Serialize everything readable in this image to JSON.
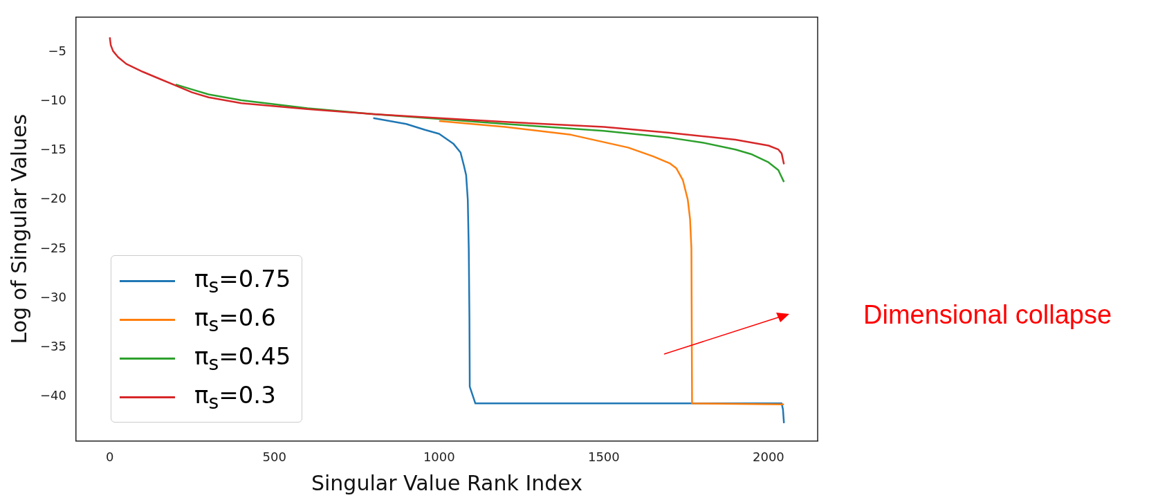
{
  "chart_data": {
    "type": "line",
    "xlabel": "Singular Value Rank Index",
    "ylabel": "Log of Singular Values",
    "xlim": [
      -102.35,
      2149.35
    ],
    "xticks": [
      0,
      500,
      1000,
      1500,
      2000
    ],
    "ylim": [
      -44.5,
      -1.45
    ],
    "yticks": [
      -40,
      -35,
      -30,
      -25,
      -20,
      -15,
      -10,
      -5
    ],
    "grid": false,
    "legend": "bottom left",
    "marker": "none",
    "line_style": "solid",
    "annotations": [
      "Dimensional collapse"
    ],
    "series": [
      {
        "name": "π$_{s}$=0.75",
        "color": "#1f77b4",
        "x": [
          800,
          900,
          957,
          1000,
          1043,
          1065,
          1075,
          1082,
          1087,
          1090,
          1092,
          1093,
          1110,
          2040,
          2044,
          2047
        ],
        "values": [
          -11.7,
          -12.3,
          -12.9,
          -13.3,
          -14.3,
          -15.2,
          -16.5,
          -17.5,
          -20,
          -25,
          -32,
          -39,
          -40.7,
          -40.7,
          -41.3,
          -42.7
        ]
      },
      {
        "name": "π$_{s}$=0.6",
        "color": "#ff7f0e",
        "x": [
          1000,
          1200,
          1400,
          1574,
          1650,
          1700,
          1720,
          1740,
          1755,
          1762,
          1766,
          1768,
          2047
        ],
        "values": [
          -12.0,
          -12.6,
          -13.4,
          -14.7,
          -15.6,
          -16.3,
          -16.8,
          -18,
          -20,
          -22,
          -25,
          -40.7,
          -40.8
        ]
      },
      {
        "name": "π$_{s}$=0.45",
        "color": "#2ca02c",
        "x": [
          200,
          250,
          300,
          400,
          500,
          600,
          800,
          1000,
          1200,
          1500,
          1700,
          1800,
          1900,
          1950,
          2000,
          2030,
          2047
        ],
        "values": [
          -8.3,
          -8.8,
          -9.3,
          -9.9,
          -10.3,
          -10.7,
          -11.3,
          -11.8,
          -12.3,
          -13.0,
          -13.7,
          -14.2,
          -14.9,
          -15.4,
          -16.2,
          -17.0,
          -18.2
        ]
      },
      {
        "name": "π$_{s}$=0.3",
        "color": "#d62728",
        "x": [
          0,
          3,
          10,
          25,
          50,
          100,
          150,
          200,
          250,
          300,
          400,
          500,
          600,
          800,
          1000,
          1200,
          1500,
          1700,
          1900,
          2000,
          2030,
          2040,
          2047
        ],
        "values": [
          -3.5,
          -4.3,
          -4.9,
          -5.5,
          -6.2,
          -7.0,
          -7.7,
          -8.4,
          -9.1,
          -9.6,
          -10.2,
          -10.5,
          -10.8,
          -11.3,
          -11.7,
          -12.1,
          -12.6,
          -13.2,
          -13.9,
          -14.5,
          -14.9,
          -15.3,
          -16.4
        ]
      }
    ]
  }
}
